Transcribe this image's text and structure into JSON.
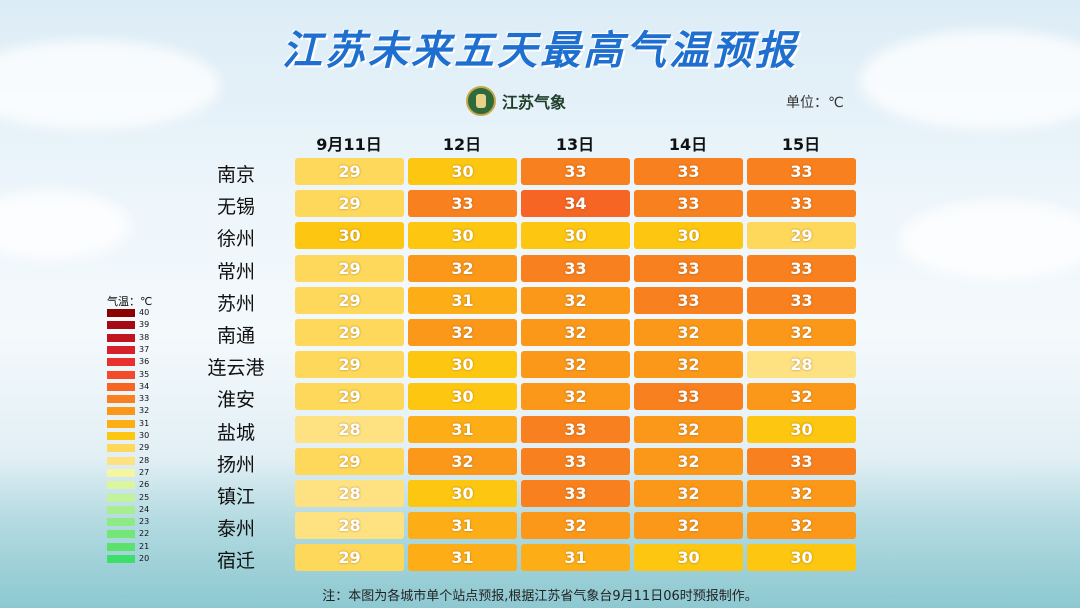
{
  "title": "江苏未来五天最高气温预报",
  "logo_text": "江苏气象",
  "unit_label": "单位：℃",
  "columns": [
    "9月11日",
    "12日",
    "13日",
    "14日",
    "15日"
  ],
  "cities": [
    {
      "name": "南京",
      "temps": [
        29,
        30,
        33,
        33,
        33
      ]
    },
    {
      "name": "无锡",
      "temps": [
        29,
        33,
        34,
        33,
        33
      ]
    },
    {
      "name": "徐州",
      "temps": [
        30,
        30,
        30,
        30,
        29
      ]
    },
    {
      "name": "常州",
      "temps": [
        29,
        32,
        33,
        33,
        33
      ]
    },
    {
      "name": "苏州",
      "temps": [
        29,
        31,
        32,
        33,
        33
      ]
    },
    {
      "name": "南通",
      "temps": [
        29,
        32,
        32,
        32,
        32
      ]
    },
    {
      "name": "连云港",
      "temps": [
        29,
        30,
        32,
        32,
        28
      ]
    },
    {
      "name": "淮安",
      "temps": [
        29,
        30,
        32,
        33,
        32
      ]
    },
    {
      "name": "盐城",
      "temps": [
        28,
        31,
        33,
        32,
        30
      ]
    },
    {
      "name": "扬州",
      "temps": [
        29,
        32,
        33,
        32,
        33
      ]
    },
    {
      "name": "镇江",
      "temps": [
        28,
        30,
        33,
        32,
        32
      ]
    },
    {
      "name": "泰州",
      "temps": [
        28,
        31,
        32,
        32,
        32
      ]
    },
    {
      "name": "宿迁",
      "temps": [
        29,
        31,
        31,
        30,
        30
      ]
    }
  ],
  "legend": {
    "title": "气温：℃",
    "entries": [
      {
        "value": "40",
        "color": "#8b0000"
      },
      {
        "value": "39",
        "color": "#a50a14"
      },
      {
        "value": "38",
        "color": "#c01420"
      },
      {
        "value": "37",
        "color": "#d6202a"
      },
      {
        "value": "36",
        "color": "#e8302e"
      },
      {
        "value": "35",
        "color": "#f24a2a"
      },
      {
        "value": "34",
        "color": "#f66524"
      },
      {
        "value": "33",
        "color": "#f8801e"
      },
      {
        "value": "32",
        "color": "#fb981a"
      },
      {
        "value": "31",
        "color": "#fdae16"
      },
      {
        "value": "30",
        "color": "#fdc610"
      },
      {
        "value": "29",
        "color": "#fed85a"
      },
      {
        "value": "28",
        "color": "#fee282"
      },
      {
        "value": "27",
        "color": "#f4f7a0"
      },
      {
        "value": "26",
        "color": "#dcf6a0"
      },
      {
        "value": "25",
        "color": "#c2f29a"
      },
      {
        "value": "24",
        "color": "#a8ee90"
      },
      {
        "value": "23",
        "color": "#8eea84"
      },
      {
        "value": "22",
        "color": "#74e678"
      },
      {
        "value": "21",
        "color": "#5ae26c"
      },
      {
        "value": "20",
        "color": "#3ede6a"
      }
    ]
  },
  "note": "注：本图为各城市单个站点预报,根据江苏省气象台9月11日06时预报制作。"
}
